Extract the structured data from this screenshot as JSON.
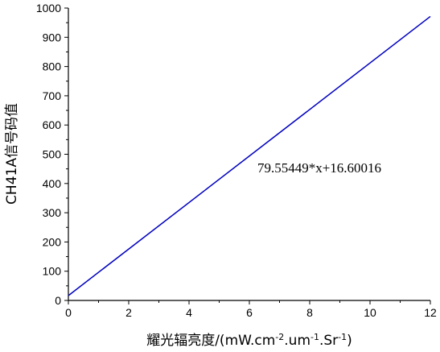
{
  "chart_data": {
    "type": "line",
    "ylabel": "CH41A信号码值",
    "xlabel": [
      "耀光辐亮度/(mW.cm",
      "-2",
      ".um",
      "-1",
      ".Sr",
      "-1",
      ")"
    ],
    "annotation": "79.55449*x+16.60016",
    "x": [
      0,
      12
    ],
    "series": [
      {
        "color": "#0000c0",
        "values": [
          16.60016,
          971.25404
        ]
      }
    ],
    "xlim": [
      0,
      12
    ],
    "xticks": [
      0,
      2,
      4,
      6,
      8,
      10,
      12
    ],
    "ylim": [
      0,
      1000
    ],
    "yticks": [
      0,
      100,
      200,
      300,
      400,
      500,
      600,
      700,
      800,
      900,
      1000
    ]
  }
}
